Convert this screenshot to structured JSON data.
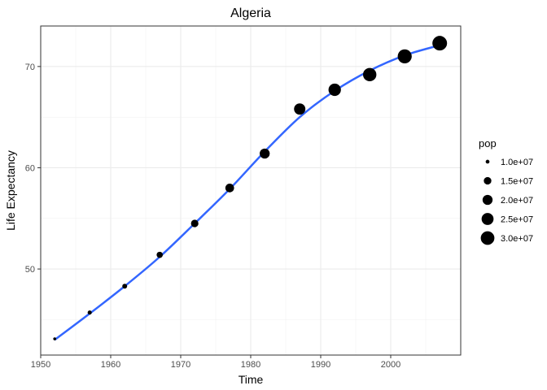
{
  "chart_data": {
    "type": "scatter",
    "title": "Algeria",
    "xlabel": "Time",
    "ylabel": "Life Expectancy",
    "xlim": [
      1950,
      2010
    ],
    "ylim": [
      41.5,
      74
    ],
    "x_ticks": [
      1950,
      1960,
      1970,
      1980,
      1990,
      2000
    ],
    "y_ticks": [
      50,
      60,
      70
    ],
    "grid": true,
    "theme": "bw",
    "points": [
      {
        "x": 1952,
        "y": 43.1,
        "pop": 9279525
      },
      {
        "x": 1957,
        "y": 45.7,
        "pop": 10270856
      },
      {
        "x": 1962,
        "y": 48.3,
        "pop": 11000948
      },
      {
        "x": 1967,
        "y": 51.4,
        "pop": 12760499
      },
      {
        "x": 1972,
        "y": 54.5,
        "pop": 14760787
      },
      {
        "x": 1977,
        "y": 58.0,
        "pop": 17152804
      },
      {
        "x": 1982,
        "y": 61.4,
        "pop": 20033753
      },
      {
        "x": 1987,
        "y": 65.8,
        "pop": 23254956
      },
      {
        "x": 1992,
        "y": 67.7,
        "pop": 26298373
      },
      {
        "x": 1997,
        "y": 69.2,
        "pop": 29072015
      },
      {
        "x": 2002,
        "y": 71.0,
        "pop": 31287142
      },
      {
        "x": 2007,
        "y": 72.3,
        "pop": 33333216
      }
    ],
    "smooth": {
      "method": "loess",
      "color": "#3366ff",
      "x": [
        1952,
        1957,
        1962,
        1967,
        1972,
        1977,
        1982,
        1987,
        1992,
        1997,
        2002,
        2007
      ],
      "y": [
        43.0,
        45.6,
        48.3,
        51.2,
        54.5,
        57.9,
        61.6,
        65.0,
        67.6,
        69.6,
        71.1,
        72.1
      ]
    },
    "point_color": "#000000",
    "legend": {
      "title": "pop",
      "position": "right",
      "entries": [
        {
          "label": "1.0e+07",
          "value": 10000000
        },
        {
          "label": "1.5e+07",
          "value": 15000000
        },
        {
          "label": "2.0e+07",
          "value": 20000000
        },
        {
          "label": "2.5e+07",
          "value": 25000000
        },
        {
          "label": "3.0e+07",
          "value": 30000000
        }
      ]
    }
  }
}
